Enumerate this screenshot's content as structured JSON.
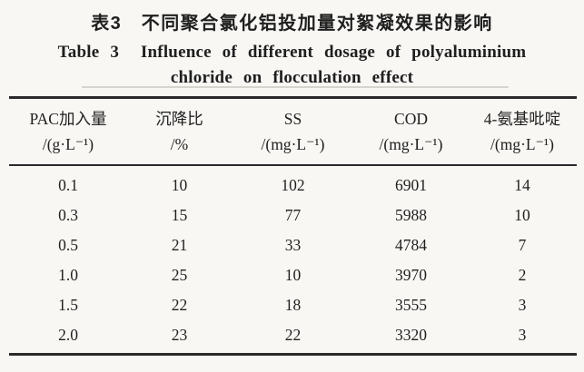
{
  "colors": {
    "page_background": "#f8f7f4",
    "text": "#1f1f1f",
    "table_rule": "#2a2a2a"
  },
  "caption": {
    "zh": "表3　不同聚合氯化铝投加量对絮凝效果的影响",
    "en_line1": "Table 3  Influence of different dosage of polyaluminium",
    "en_line2": "chloride on flocculation effect"
  },
  "table": {
    "columns": [
      {
        "label": "PAC加入量",
        "unit": "/(g·L⁻¹)"
      },
      {
        "label": "沉降比",
        "unit": "/%"
      },
      {
        "label": "SS",
        "unit": "/(mg·L⁻¹)"
      },
      {
        "label": "COD",
        "unit": "/(mg·L⁻¹)"
      },
      {
        "label": "4-氨基吡啶",
        "unit": "/(mg·L⁻¹)"
      }
    ],
    "rows": [
      [
        "0.1",
        "10",
        "102",
        "6901",
        "14"
      ],
      [
        "0.3",
        "15",
        "77",
        "5988",
        "10"
      ],
      [
        "0.5",
        "21",
        "33",
        "4784",
        "7"
      ],
      [
        "1.0",
        "25",
        "10",
        "3970",
        "2"
      ],
      [
        "1.5",
        "22",
        "18",
        "3555",
        "3"
      ],
      [
        "2.0",
        "23",
        "22",
        "3320",
        "3"
      ]
    ]
  },
  "chart_data": {
    "type": "table",
    "title": "表3 不同聚合氯化铝投加量对絮凝效果的影响 / Table 3 Influence of different dosage of polyaluminium chloride on flocculation effect",
    "categories": [
      "PAC加入量 /(g·L⁻¹)",
      "沉降比 /%",
      "SS /(mg·L⁻¹)",
      "COD /(mg·L⁻¹)",
      "4-氨基吡啶 /(mg·L⁻¹)"
    ],
    "x": [
      0.1,
      0.3,
      0.5,
      1.0,
      1.5,
      2.0
    ],
    "series": [
      {
        "name": "沉降比 /%",
        "values": [
          10,
          15,
          21,
          25,
          22,
          23
        ]
      },
      {
        "name": "SS /(mg·L⁻¹)",
        "values": [
          102,
          77,
          33,
          10,
          18,
          22
        ]
      },
      {
        "name": "COD /(mg·L⁻¹)",
        "values": [
          6901,
          5988,
          4784,
          3970,
          3555,
          3320
        ]
      },
      {
        "name": "4-氨基吡啶 /(mg·L⁻¹)",
        "values": [
          14,
          10,
          7,
          2,
          3,
          3
        ]
      }
    ]
  }
}
